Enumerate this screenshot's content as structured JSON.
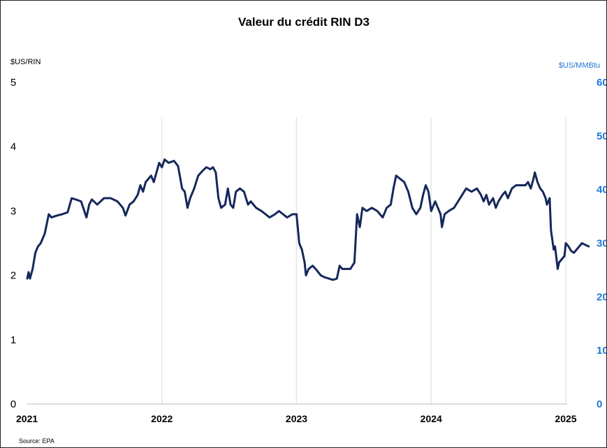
{
  "chart_data": {
    "type": "line",
    "title": "Valeur du crédit RIN D3",
    "ylabel_left": "$US/RIN",
    "ylabel_right": "$US/MMBtu",
    "source": "Source: EPA",
    "ylim": [
      0,
      5
    ],
    "ylim_right": [
      0,
      60
    ],
    "yticks": [
      "0",
      "1",
      "2",
      "3",
      "4",
      "5"
    ],
    "yticks_right": [
      "0",
      "10",
      "20",
      "30",
      "40",
      "50",
      "60"
    ],
    "xlim": [
      2021.0,
      2025.0
    ],
    "xticks": [
      {
        "label": "2021",
        "x": 2021
      },
      {
        "label": "2022",
        "x": 2022
      },
      {
        "label": "2023",
        "x": 2023
      },
      {
        "label": "2024",
        "x": 2024
      },
      {
        "label": "2025",
        "x": 2025
      }
    ],
    "grid": "vertical",
    "line_color": "#15285a",
    "right_axis_color": "#1f77d4",
    "series": [
      {
        "points": [
          [
            2021.0,
            1.95
          ],
          [
            2021.01,
            2.05
          ],
          [
            2021.02,
            1.95
          ],
          [
            2021.04,
            2.1
          ],
          [
            2021.06,
            2.35
          ],
          [
            2021.08,
            2.45
          ],
          [
            2021.1,
            2.5
          ],
          [
            2021.13,
            2.65
          ],
          [
            2021.16,
            2.95
          ],
          [
            2021.18,
            2.9
          ],
          [
            2021.22,
            2.93
          ],
          [
            2021.26,
            2.95
          ],
          [
            2021.3,
            2.98
          ],
          [
            2021.33,
            3.2
          ],
          [
            2021.36,
            3.18
          ],
          [
            2021.4,
            3.15
          ],
          [
            2021.44,
            2.9
          ],
          [
            2021.46,
            3.1
          ],
          [
            2021.48,
            3.18
          ],
          [
            2021.52,
            3.1
          ],
          [
            2021.57,
            3.2
          ],
          [
            2021.62,
            3.2
          ],
          [
            2021.67,
            3.15
          ],
          [
            2021.71,
            3.05
          ],
          [
            2021.73,
            2.93
          ],
          [
            2021.76,
            3.1
          ],
          [
            2021.79,
            3.15
          ],
          [
            2021.82,
            3.25
          ],
          [
            2021.84,
            3.4
          ],
          [
            2021.86,
            3.3
          ],
          [
            2021.88,
            3.45
          ],
          [
            2021.92,
            3.55
          ],
          [
            2021.94,
            3.45
          ],
          [
            2021.96,
            3.6
          ],
          [
            2021.98,
            3.75
          ],
          [
            2022.0,
            3.68
          ],
          [
            2022.02,
            3.8
          ],
          [
            2022.05,
            3.75
          ],
          [
            2022.09,
            3.78
          ],
          [
            2022.12,
            3.7
          ],
          [
            2022.15,
            3.35
          ],
          [
            2022.17,
            3.3
          ],
          [
            2022.19,
            3.05
          ],
          [
            2022.21,
            3.2
          ],
          [
            2022.24,
            3.35
          ],
          [
            2022.27,
            3.55
          ],
          [
            2022.3,
            3.62
          ],
          [
            2022.33,
            3.68
          ],
          [
            2022.36,
            3.65
          ],
          [
            2022.38,
            3.68
          ],
          [
            2022.4,
            3.6
          ],
          [
            2022.42,
            3.2
          ],
          [
            2022.44,
            3.05
          ],
          [
            2022.47,
            3.1
          ],
          [
            2022.49,
            3.35
          ],
          [
            2022.51,
            3.1
          ],
          [
            2022.53,
            3.05
          ],
          [
            2022.55,
            3.3
          ],
          [
            2022.58,
            3.35
          ],
          [
            2022.61,
            3.3
          ],
          [
            2022.64,
            3.1
          ],
          [
            2022.66,
            3.15
          ],
          [
            2022.7,
            3.05
          ],
          [
            2022.74,
            3.0
          ],
          [
            2022.77,
            2.95
          ],
          [
            2022.8,
            2.9
          ],
          [
            2022.84,
            2.95
          ],
          [
            2022.87,
            3.0
          ],
          [
            2022.9,
            2.95
          ],
          [
            2022.93,
            2.9
          ],
          [
            2022.97,
            2.95
          ],
          [
            2023.0,
            2.95
          ],
          [
            2023.02,
            2.5
          ],
          [
            2023.04,
            2.4
          ],
          [
            2023.06,
            2.2
          ],
          [
            2023.07,
            2.0
          ],
          [
            2023.09,
            2.1
          ],
          [
            2023.12,
            2.15
          ],
          [
            2023.15,
            2.08
          ],
          [
            2023.18,
            2.0
          ],
          [
            2023.21,
            1.97
          ],
          [
            2023.24,
            1.95
          ],
          [
            2023.27,
            1.93
          ],
          [
            2023.3,
            1.95
          ],
          [
            2023.32,
            2.15
          ],
          [
            2023.34,
            2.1
          ],
          [
            2023.37,
            2.1
          ],
          [
            2023.4,
            2.1
          ],
          [
            2023.43,
            2.2
          ],
          [
            2023.45,
            2.95
          ],
          [
            2023.47,
            2.75
          ],
          [
            2023.49,
            3.05
          ],
          [
            2023.52,
            3.0
          ],
          [
            2023.56,
            3.05
          ],
          [
            2023.6,
            3.0
          ],
          [
            2023.64,
            2.9
          ],
          [
            2023.67,
            3.05
          ],
          [
            2023.7,
            3.1
          ],
          [
            2023.72,
            3.35
          ],
          [
            2023.74,
            3.55
          ],
          [
            2023.77,
            3.5
          ],
          [
            2023.8,
            3.45
          ],
          [
            2023.83,
            3.3
          ],
          [
            2023.86,
            3.05
          ],
          [
            2023.89,
            2.95
          ],
          [
            2023.92,
            3.05
          ],
          [
            2023.94,
            3.25
          ],
          [
            2023.96,
            3.4
          ],
          [
            2023.98,
            3.3
          ],
          [
            2024.0,
            3.0
          ],
          [
            2024.03,
            3.15
          ],
          [
            2024.05,
            3.05
          ],
          [
            2024.07,
            2.95
          ],
          [
            2024.08,
            2.75
          ],
          [
            2024.1,
            2.95
          ],
          [
            2024.13,
            3.0
          ],
          [
            2024.17,
            3.05
          ],
          [
            2024.2,
            3.15
          ],
          [
            2024.23,
            3.25
          ],
          [
            2024.26,
            3.35
          ],
          [
            2024.3,
            3.3
          ],
          [
            2024.34,
            3.35
          ],
          [
            2024.37,
            3.25
          ],
          [
            2024.39,
            3.15
          ],
          [
            2024.41,
            3.25
          ],
          [
            2024.43,
            3.1
          ],
          [
            2024.46,
            3.2
          ],
          [
            2024.48,
            3.05
          ],
          [
            2024.5,
            3.15
          ],
          [
            2024.53,
            3.25
          ],
          [
            2024.55,
            3.3
          ],
          [
            2024.57,
            3.2
          ],
          [
            2024.6,
            3.35
          ],
          [
            2024.63,
            3.4
          ],
          [
            2024.66,
            3.4
          ],
          [
            2024.7,
            3.4
          ],
          [
            2024.72,
            3.45
          ],
          [
            2024.74,
            3.35
          ],
          [
            2024.76,
            3.5
          ],
          [
            2024.77,
            3.6
          ],
          [
            2024.79,
            3.45
          ],
          [
            2024.81,
            3.35
          ],
          [
            2024.83,
            3.3
          ],
          [
            2024.85,
            3.2
          ],
          [
            2024.86,
            3.1
          ],
          [
            2024.88,
            3.2
          ],
          [
            2024.89,
            2.7
          ],
          [
            2024.91,
            2.4
          ],
          [
            2024.92,
            2.45
          ],
          [
            2024.94,
            2.1
          ],
          [
            2024.95,
            2.2
          ],
          [
            2024.97,
            2.25
          ],
          [
            2024.99,
            2.3
          ],
          [
            2025.0,
            2.5
          ],
          [
            2025.02,
            2.45
          ],
          [
            2025.04,
            2.38
          ],
          [
            2025.06,
            2.35
          ],
          [
            2025.08,
            2.4
          ],
          [
            2025.1,
            2.45
          ],
          [
            2025.12,
            2.5
          ],
          [
            2025.15,
            2.47
          ],
          [
            2025.17,
            2.45
          ]
        ]
      }
    ]
  }
}
